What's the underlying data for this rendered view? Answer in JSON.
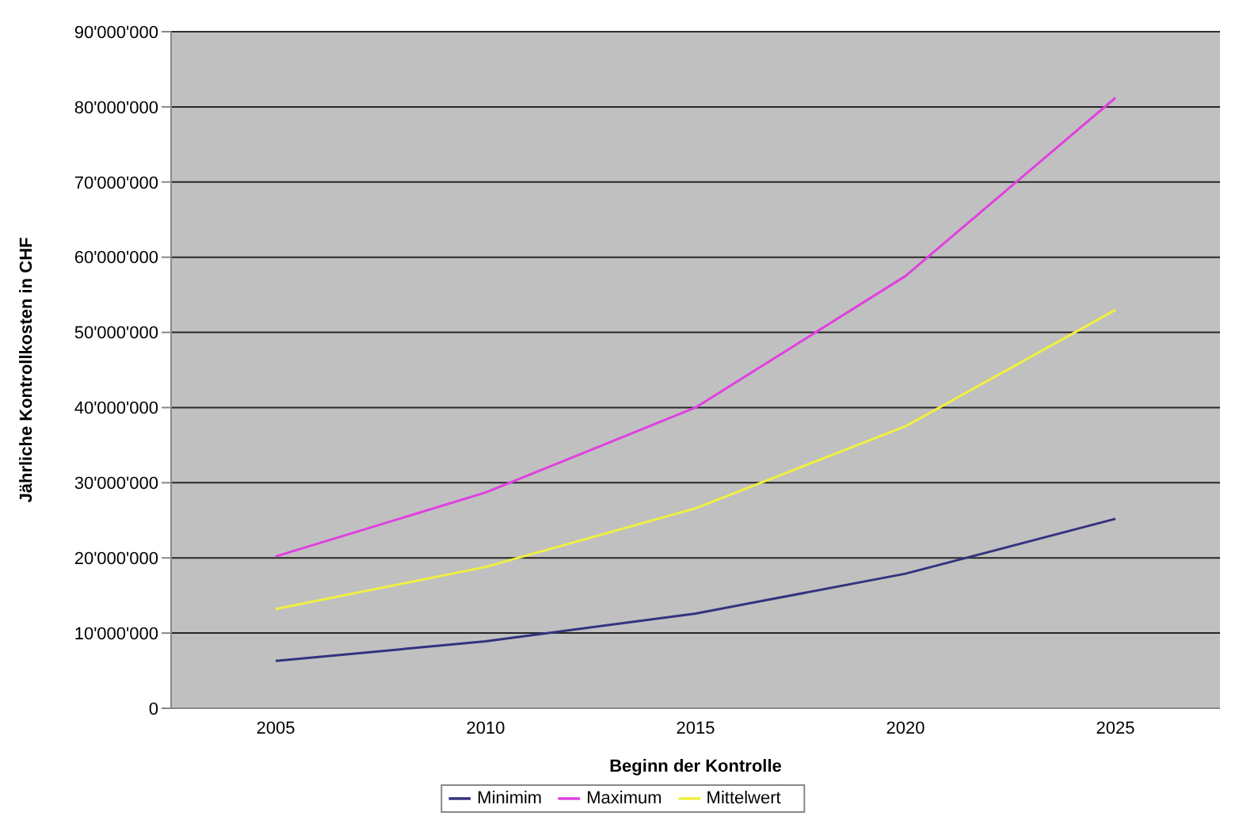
{
  "chart_data": {
    "type": "line",
    "xlabel": "Beginn der Kontrolle",
    "ylabel": "Jährliche Kontrollkosten in CHF",
    "categories": [
      "2005",
      "2010",
      "2015",
      "2020",
      "2025"
    ],
    "series": [
      {
        "name": "Minimim",
        "color": "#33337f",
        "values": [
          6300000,
          8900000,
          12600000,
          17900000,
          25200000
        ]
      },
      {
        "name": "Maximum",
        "color": "#e040e0",
        "values": [
          20200000,
          28700000,
          40000000,
          57500000,
          81200000
        ]
      },
      {
        "name": "Mittelwert",
        "color": "#f0f040",
        "values": [
          13200000,
          18800000,
          26600000,
          37500000,
          53000000
        ]
      }
    ],
    "ylim": [
      0,
      90000000
    ],
    "yticks": [
      0,
      {
        "value": 10000000,
        "label": "10'000'000"
      },
      {
        "value": 20000000,
        "label": "20'000'000"
      },
      {
        "value": 30000000,
        "label": "30'000'000"
      },
      {
        "value": 40000000,
        "label": "40'000'000"
      },
      {
        "value": 50000000,
        "label": "50'000'000"
      },
      {
        "value": 60000000,
        "label": "60'000'000"
      },
      {
        "value": 70000000,
        "label": "70'000'000"
      },
      {
        "value": 80000000,
        "label": "80'000'000"
      },
      {
        "value": 90000000,
        "label": "90'000'000"
      }
    ],
    "grid": "y",
    "legend": "bottom",
    "marker": "none",
    "line_style": "solid"
  }
}
